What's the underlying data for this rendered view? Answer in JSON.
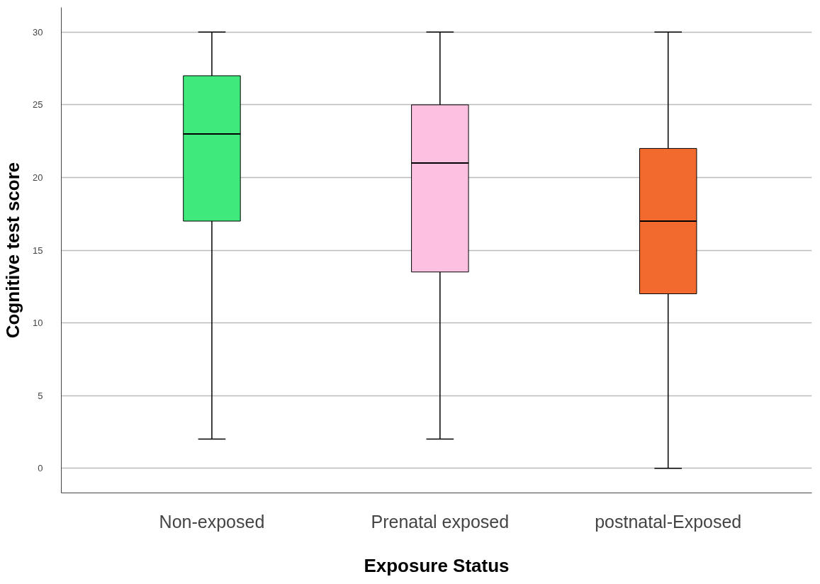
{
  "chart_data": {
    "type": "box",
    "xlabel": "Exposure Status",
    "ylabel": "Cognitive test score",
    "categories": [
      "Non-exposed",
      "Prenatal exposed",
      "postnatal-Exposed"
    ],
    "colors": [
      "#40e97c",
      "#fdc0e0",
      "#f26a2e"
    ],
    "boxes": [
      {
        "low": 2,
        "q1": 17,
        "median": 23,
        "q3": 27,
        "high": 30
      },
      {
        "low": 2,
        "q1": 13.5,
        "median": 21,
        "q3": 25,
        "high": 30
      },
      {
        "low": 0,
        "q1": 12,
        "median": 17,
        "q3": 22,
        "high": 30
      }
    ],
    "ylim": [
      -1.7,
      31.7
    ],
    "yticks": [
      0,
      5,
      10,
      15,
      20,
      25,
      30
    ],
    "grid": "y"
  }
}
